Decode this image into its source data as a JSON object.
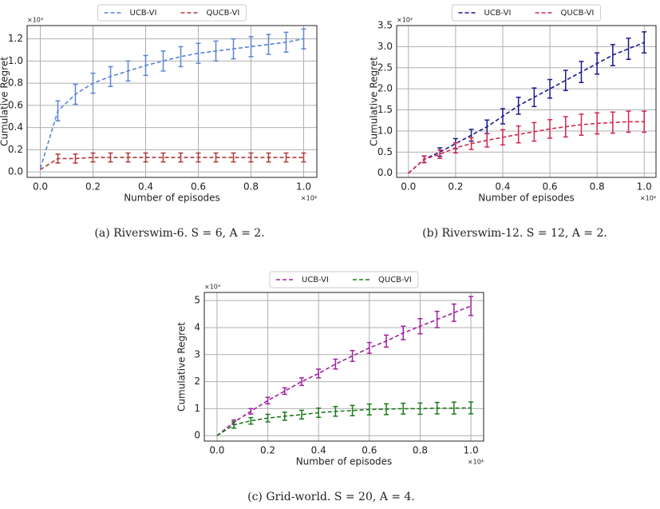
{
  "chart_data": [
    {
      "type": "line",
      "caption": "(a)  Riverswim-6.  S = 6,  A = 2.",
      "xlabel": "Number of episodes",
      "ylabel": "Cumulative Regret",
      "y_multiplier": "×10³",
      "x_multiplier": "×10⁴",
      "x": [
        0,
        0.0667,
        0.1333,
        0.2,
        0.2667,
        0.3333,
        0.4,
        0.4667,
        0.5333,
        0.6,
        0.6667,
        0.7333,
        0.8,
        0.8667,
        0.9333,
        1.0
      ],
      "series": [
        {
          "name": "UCB-VI",
          "color": "#5b84d6",
          "values": [
            0.03,
            0.55,
            0.7,
            0.8,
            0.86,
            0.91,
            0.96,
            1.0,
            1.04,
            1.07,
            1.09,
            1.11,
            1.13,
            1.15,
            1.17,
            1.2
          ],
          "errors": [
            null,
            0.09,
            0.09,
            0.09,
            0.09,
            0.09,
            0.09,
            0.09,
            0.09,
            0.09,
            0.09,
            0.09,
            0.09,
            0.09,
            0.09,
            0.09
          ]
        },
        {
          "name": "QUCB-VI",
          "color": "#b03a3a",
          "values": [
            0.02,
            0.12,
            0.12,
            0.13,
            0.13,
            0.13,
            0.13,
            0.13,
            0.13,
            0.13,
            0.13,
            0.13,
            0.13,
            0.13,
            0.13,
            0.13
          ],
          "errors": [
            null,
            0.04,
            0.04,
            0.04,
            0.04,
            0.04,
            0.04,
            0.04,
            0.04,
            0.04,
            0.04,
            0.04,
            0.04,
            0.04,
            0.04,
            0.04
          ]
        }
      ],
      "xlim": [
        -0.05,
        1.05
      ],
      "xticks": [
        {
          "value": 0,
          "label": "0.0"
        },
        0.2,
        0.4,
        0.6,
        0.8,
        {
          "value": 1,
          "label": "1.0"
        }
      ],
      "ylim": [
        -0.05,
        1.32
      ],
      "yticks": [
        {
          "value": 0,
          "label": "0.0"
        },
        0.2,
        0.4,
        0.6,
        0.8,
        {
          "value": 1,
          "label": "1.0"
        },
        1.2
      ],
      "grid": true,
      "legend": "top"
    },
    {
      "type": "line",
      "caption": "(b)  Riverswim-12.  S = 12,  A = 2.",
      "xlabel": "Number of episodes",
      "ylabel": "Cumulative Regret",
      "y_multiplier": "×10²",
      "x_multiplier": "×10⁴",
      "x": [
        0,
        0.0667,
        0.1333,
        0.2,
        0.2667,
        0.3333,
        0.4,
        0.4667,
        0.5333,
        0.6,
        0.6667,
        0.7333,
        0.8,
        0.8667,
        0.9333,
        1.0
      ],
      "series": [
        {
          "name": "UCB-VI",
          "color": "#1a1a8c",
          "values": [
            0,
            0.33,
            0.5,
            0.7,
            0.9,
            1.1,
            1.35,
            1.6,
            1.8,
            2.0,
            2.2,
            2.4,
            2.6,
            2.8,
            2.95,
            3.1
          ],
          "errors": [
            null,
            0.08,
            0.1,
            0.12,
            0.14,
            0.16,
            0.18,
            0.2,
            0.22,
            0.22,
            0.24,
            0.25,
            0.25,
            0.25,
            0.25,
            0.25
          ]
        },
        {
          "name": "QUCB-VI",
          "color": "#d0284f",
          "values": [
            0,
            0.33,
            0.45,
            0.6,
            0.7,
            0.78,
            0.85,
            0.92,
            0.98,
            1.05,
            1.1,
            1.15,
            1.18,
            1.2,
            1.22,
            1.22
          ],
          "errors": [
            null,
            0.08,
            0.1,
            0.12,
            0.14,
            0.16,
            0.18,
            0.2,
            0.22,
            0.22,
            0.24,
            0.25,
            0.25,
            0.25,
            0.25,
            0.25
          ]
        }
      ],
      "xlim": [
        -0.05,
        1.05
      ],
      "xticks": [
        {
          "value": 0,
          "label": "0.0"
        },
        0.2,
        0.4,
        0.6,
        0.8,
        {
          "value": 1,
          "label": "1.0"
        }
      ],
      "ylim": [
        -0.1,
        3.5
      ],
      "yticks": [
        {
          "value": 0,
          "label": "0.0"
        },
        0.5,
        {
          "value": 1,
          "label": "1.0"
        },
        1.5,
        {
          "value": 2,
          "label": "2.0"
        },
        2.5,
        {
          "value": 3,
          "label": "3.0"
        },
        3.5
      ],
      "grid": true,
      "legend": "top"
    },
    {
      "type": "line",
      "caption": "(c)  Grid-world.  S = 20,  A = 4.",
      "xlabel": "Number of episodes",
      "ylabel": "Cumulative Regret",
      "y_multiplier": "×10³",
      "x_multiplier": "×10⁴",
      "x": [
        0,
        0.0667,
        0.1333,
        0.2,
        0.2667,
        0.3333,
        0.4,
        0.4667,
        0.5333,
        0.6,
        0.6667,
        0.7333,
        0.8,
        0.8667,
        0.9333,
        1.0
      ],
      "series": [
        {
          "name": "UCB-VI",
          "color": "#a020a0",
          "values": [
            0,
            0.5,
            0.9,
            1.3,
            1.65,
            2.0,
            2.3,
            2.65,
            2.95,
            3.25,
            3.5,
            3.8,
            4.05,
            4.3,
            4.55,
            4.8
          ],
          "errors": [
            null,
            0.08,
            0.1,
            0.12,
            0.12,
            0.14,
            0.16,
            0.18,
            0.2,
            0.2,
            0.22,
            0.25,
            0.28,
            0.3,
            0.32,
            0.35
          ]
        },
        {
          "name": "QUCB-VI",
          "color": "#1e7a1e",
          "values": [
            0,
            0.4,
            0.55,
            0.65,
            0.72,
            0.78,
            0.85,
            0.9,
            0.93,
            0.97,
            0.98,
            1.0,
            1.0,
            1.02,
            1.02,
            1.03
          ],
          "errors": [
            null,
            0.12,
            0.12,
            0.14,
            0.15,
            0.16,
            0.17,
            0.18,
            0.19,
            0.2,
            0.2,
            0.2,
            0.21,
            0.21,
            0.22,
            0.22
          ]
        }
      ],
      "xlim": [
        -0.05,
        1.05
      ],
      "xticks": [
        {
          "value": 0,
          "label": "0.0"
        },
        0.2,
        0.4,
        0.6,
        0.8,
        {
          "value": 1,
          "label": "1.0"
        }
      ],
      "ylim": [
        -0.2,
        5.3
      ],
      "yticks": [
        0,
        1,
        2,
        3,
        4,
        5
      ],
      "grid": true,
      "legend": "top"
    }
  ]
}
